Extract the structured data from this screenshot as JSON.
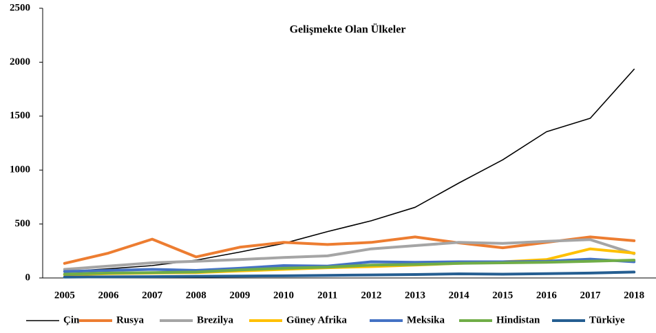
{
  "chart_data": {
    "type": "line",
    "title": "Gelişmekte Olan Ülkeler",
    "categories": [
      "2005",
      "2006",
      "2007",
      "2008",
      "2009",
      "2010",
      "2011",
      "2012",
      "2013",
      "2014",
      "2015",
      "2016",
      "2017",
      "2018"
    ],
    "series": [
      {
        "name": "Çin",
        "color": "#000000",
        "values": [
          60,
          85,
          115,
          165,
          240,
          320,
          430,
          530,
          655,
          880,
          1095,
          1355,
          1480,
          1935
        ]
      },
      {
        "name": "Rusya",
        "color": "#ed7d31",
        "values": [
          135,
          230,
          360,
          195,
          285,
          330,
          310,
          330,
          380,
          325,
          280,
          330,
          380,
          345
        ]
      },
      {
        "name": "Brezilya",
        "color": "#a5a5a5",
        "values": [
          80,
          110,
          140,
          155,
          170,
          190,
          205,
          270,
          300,
          330,
          320,
          340,
          355,
          225
        ]
      },
      {
        "name": "Güney Afrika",
        "color": "#ffc000",
        "values": [
          30,
          40,
          45,
          50,
          65,
          80,
          95,
          105,
          120,
          135,
          150,
          170,
          270,
          230
        ]
      },
      {
        "name": "Meksika",
        "color": "#4472c4",
        "values": [
          60,
          70,
          80,
          70,
          90,
          115,
          110,
          150,
          145,
          150,
          150,
          155,
          175,
          150
        ]
      },
      {
        "name": "Hindistan",
        "color": "#70ad47",
        "values": [
          35,
          45,
          50,
          55,
          75,
          90,
          100,
          120,
          125,
          135,
          140,
          145,
          155,
          165
        ]
      },
      {
        "name": "Türkiye",
        "color": "#255e91",
        "values": [
          8,
          10,
          12,
          15,
          18,
          20,
          24,
          28,
          32,
          38,
          35,
          40,
          45,
          55
        ]
      }
    ],
    "ylim": [
      0,
      2500
    ],
    "yticks": [
      0,
      500,
      1000,
      1500,
      2000,
      2500
    ]
  }
}
